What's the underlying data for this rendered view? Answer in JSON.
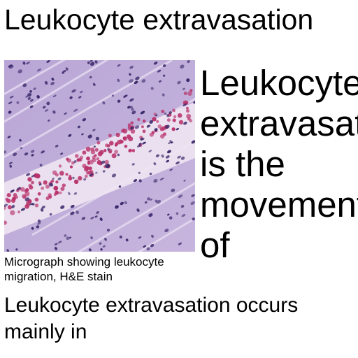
{
  "page": {
    "title": "Leukocyte extravasation"
  },
  "figure": {
    "caption": "Micrograph showing leukocyte migration, H&E stain"
  },
  "lead_text": {
    "lines": [
      "Leukocyte",
      "extravasation",
      "is the",
      "movement",
      "of"
    ]
  },
  "body": {
    "paragraph": "Leukocyte extravasation occurs mainly in"
  },
  "colors": {
    "tissue_pink": "#c9b6dc",
    "nuclei_purple": "#3b2a6b",
    "rbc_red": "#b8326a",
    "background": "#ffffff",
    "text": "#000000"
  }
}
